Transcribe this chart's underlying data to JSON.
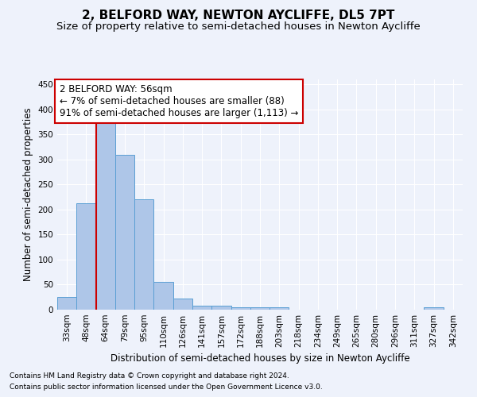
{
  "title": "2, BELFORD WAY, NEWTON AYCLIFFE, DL5 7PT",
  "subtitle": "Size of property relative to semi-detached houses in Newton Aycliffe",
  "xlabel": "Distribution of semi-detached houses by size in Newton Aycliffe",
  "ylabel": "Number of semi-detached properties",
  "footnote1": "Contains HM Land Registry data © Crown copyright and database right 2024.",
  "footnote2": "Contains public sector information licensed under the Open Government Licence v3.0.",
  "categories": [
    "33sqm",
    "48sqm",
    "64sqm",
    "79sqm",
    "95sqm",
    "110sqm",
    "126sqm",
    "141sqm",
    "157sqm",
    "172sqm",
    "188sqm",
    "203sqm",
    "218sqm",
    "234sqm",
    "249sqm",
    "265sqm",
    "280sqm",
    "296sqm",
    "311sqm",
    "327sqm",
    "342sqm"
  ],
  "values": [
    25,
    212,
    372,
    310,
    220,
    55,
    22,
    8,
    8,
    5,
    4,
    4,
    0,
    0,
    0,
    0,
    0,
    0,
    0,
    4,
    0
  ],
  "bar_color": "#aec6e8",
  "bar_edge_color": "#5a9fd4",
  "annotation_title": "2 BELFORD WAY: 56sqm",
  "annotation_line1": "← 7% of semi-detached houses are smaller (88)",
  "annotation_line2": "91% of semi-detached houses are larger (1,113) →",
  "annotation_box_color": "#ffffff",
  "annotation_box_edge": "#cc0000",
  "property_line_color": "#cc0000",
  "property_line_x": 1.53,
  "ylim": [
    0,
    460
  ],
  "background_color": "#eef2fb",
  "grid_color": "#ffffff",
  "title_fontsize": 11,
  "subtitle_fontsize": 9.5,
  "axis_label_fontsize": 8.5,
  "tick_fontsize": 7.5,
  "annotation_fontsize": 8.5,
  "footnote_fontsize": 6.5
}
